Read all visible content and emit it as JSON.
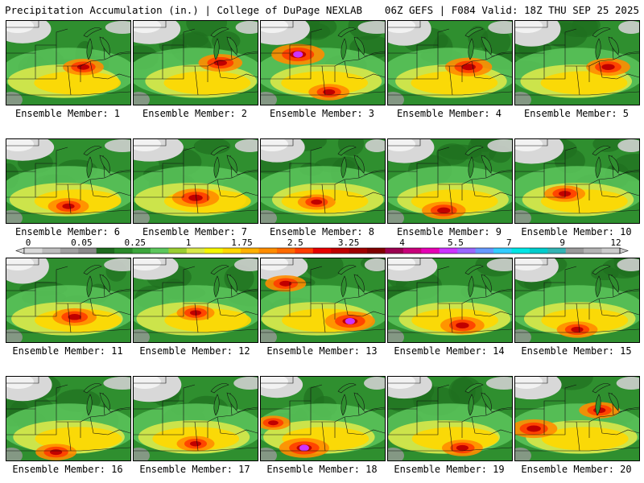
{
  "header": {
    "left": "Precipitation Accumulation (in.) | College of DuPage NEXLAB",
    "right": "06Z GEFS | F084 Valid: 18Z THU SEP 25 2025"
  },
  "member_label_prefix": "Ensemble Member: ",
  "members": [
    {
      "label": "Ensemble Member: 1",
      "heavy": [
        [
          0.62,
          0.55,
          0.3
        ]
      ]
    },
    {
      "label": "Ensemble Member: 2",
      "heavy": [
        [
          0.7,
          0.5,
          0.35
        ]
      ]
    },
    {
      "label": "Ensemble Member: 3",
      "heavy": [
        [
          0.3,
          0.4,
          0.5
        ],
        [
          0.55,
          0.85,
          0.3
        ]
      ]
    },
    {
      "label": "Ensemble Member: 4",
      "heavy": [
        [
          0.65,
          0.55,
          0.4
        ]
      ]
    },
    {
      "label": "Ensemble Member: 5",
      "heavy": [
        [
          0.75,
          0.55,
          0.35
        ]
      ]
    },
    {
      "label": "Ensemble Member: 6",
      "heavy": [
        [
          0.5,
          0.8,
          0.3
        ]
      ]
    },
    {
      "label": "Ensemble Member: 7",
      "heavy": [
        [
          0.5,
          0.7,
          0.4
        ]
      ]
    },
    {
      "label": "Ensemble Member: 8",
      "heavy": [
        [
          0.45,
          0.75,
          0.25
        ]
      ]
    },
    {
      "label": "Ensemble Member: 9",
      "heavy": [
        [
          0.45,
          0.85,
          0.35
        ]
      ]
    },
    {
      "label": "Ensemble Member: 10",
      "heavy": [
        [
          0.4,
          0.65,
          0.3
        ]
      ]
    },
    {
      "label": "Ensemble Member: 11",
      "heavy": [
        [
          0.55,
          0.7,
          0.35
        ]
      ]
    },
    {
      "label": "Ensemble Member: 12",
      "heavy": [
        [
          0.5,
          0.65,
          0.25
        ]
      ]
    },
    {
      "label": "Ensemble Member: 13",
      "heavy": [
        [
          0.2,
          0.3,
          0.3
        ],
        [
          0.72,
          0.75,
          0.45
        ]
      ]
    },
    {
      "label": "Ensemble Member: 14",
      "heavy": [
        [
          0.6,
          0.8,
          0.35
        ]
      ]
    },
    {
      "label": "Ensemble Member: 15",
      "heavy": [
        [
          0.5,
          0.85,
          0.3
        ]
      ]
    },
    {
      "label": "Ensemble Member: 16",
      "heavy": [
        [
          0.4,
          0.9,
          0.3
        ]
      ]
    },
    {
      "label": "Ensemble Member: 17",
      "heavy": [
        [
          0.5,
          0.8,
          0.25
        ]
      ]
    },
    {
      "label": "Ensemble Member: 18",
      "heavy": [
        [
          0.35,
          0.85,
          0.45
        ],
        [
          0.1,
          0.55,
          0.2
        ]
      ]
    },
    {
      "label": "Ensemble Member: 19",
      "heavy": [
        [
          0.6,
          0.85,
          0.3
        ]
      ]
    },
    {
      "label": "Ensemble Member: 20",
      "heavy": [
        [
          0.15,
          0.62,
          0.4
        ],
        [
          0.68,
          0.4,
          0.3
        ]
      ]
    }
  ],
  "colorbar": {
    "labels": [
      "0",
      "0.05",
      "0.25",
      "1",
      "1.75",
      "2.5",
      "3.25",
      "4",
      "5.5",
      "7",
      "9",
      "12"
    ],
    "colors": [
      "#d9d9d9",
      "#bdbdbd",
      "#a0a0a0",
      "#8a8a8a",
      "#1e6b1e",
      "#2a8a2a",
      "#3ca63c",
      "#5cc65c",
      "#9acd32",
      "#d9e84a",
      "#f5f500",
      "#ffd700",
      "#ffb000",
      "#ff8c00",
      "#ff6a00",
      "#ff3c00",
      "#e60000",
      "#c00000",
      "#a00000",
      "#800000",
      "#9b0050",
      "#c8007a",
      "#e600b4",
      "#cc33ff",
      "#9966ff",
      "#6699ff",
      "#33ccff",
      "#00e5e5",
      "#00cccc",
      "#33b3b3",
      "#999999",
      "#b3b3b3",
      "#cccccc"
    ]
  }
}
